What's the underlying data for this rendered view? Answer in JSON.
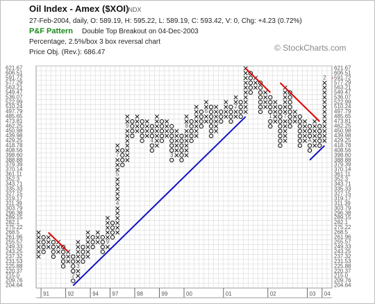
{
  "header": {
    "title": "Oil Index - Amex ($XOI)",
    "symbol_type": "INDX",
    "quote_line": "27-Feb-2004, daily, O: 589.19, H: 595.22, L: 589.19, C: 593.42, V: 0, Chg: +4.23 (0.72%)",
    "pattern_label": "P&F Pattern",
    "pattern": "Double Top Breakout on 04-Dec-2003",
    "method": "Percentage, 2.5%/box 3 box reversal chart",
    "price_objective": "Price Obj. (Rev.): 686.47",
    "watermark": "© StockCharts.com"
  },
  "chart_data": {
    "type": "pnf",
    "log_scale": true,
    "grid": true,
    "ylim": [
      204.64,
      621.67
    ],
    "yticks": [
      204.64,
      209.76,
      {
        "value": 215,
        "label": "215.0"
      },
      220.37,
      225.88,
      231.53,
      237.32,
      243.25,
      249.33,
      255.57,
      261.96,
      268.5,
      275.22,
      282.1,
      289.15,
      296.38,
      303.79,
      311.39,
      319.17,
      327.15,
      335.33,
      343.71,
      352.3,
      361.11,
      370.14,
      379.39,
      388.88,
      {
        "value": 398.6,
        "label": "398.60"
      },
      408.56,
      418.78,
      429.25,
      439.98,
      450.98,
      462.25,
      473.81,
      485.65,
      497.79,
      510.24,
      522.99,
      536.07,
      549.47,
      563.21,
      577.29,
      591.72,
      606.51,
      621.67
    ],
    "current_price_level": 591.72,
    "current_color": "#e03030",
    "x_color": "#111111",
    "o_color": "#111111",
    "month_color": "#c8783a",
    "columns": [
      {
        "box": "X",
        "low": 237.32,
        "high": 268.5
      },
      {
        "box": "O",
        "low": 243.25,
        "high": 261.96
      },
      {
        "box": "X",
        "low": 249.33,
        "high": 261.96
      },
      {
        "box": "O",
        "low": 237.32,
        "high": 255.57
      },
      {
        "box": "X",
        "low": 243.25,
        "high": 255.57
      },
      {
        "box": "O",
        "low": 225.88,
        "high": 249.33
      },
      {
        "box": "X",
        "low": 231.53,
        "high": 243.25
      },
      {
        "box": "O",
        "low": 209.76,
        "high": 237.32
      },
      {
        "box": "X",
        "low": 215,
        "high": 255.57
      },
      {
        "box": "O",
        "low": 231.53,
        "high": 249.33
      },
      {
        "box": "X",
        "low": 237.32,
        "high": 268.5
      },
      {
        "box": "O",
        "low": 249.33,
        "high": 261.96
      },
      {
        "box": "X",
        "low": 255.57,
        "high": 268.5
      },
      {
        "box": "O",
        "low": 243.25,
        "high": 261.96
      },
      {
        "box": "X",
        "low": 249.33,
        "high": 289.15
      },
      {
        "box": "O",
        "low": 261.96,
        "high": 282.1
      },
      {
        "box": "X",
        "low": 268.5,
        "high": 418.78
      },
      {
        "box": "O",
        "low": 379.39,
        "high": 408.56
      },
      {
        "box": "X",
        "low": 388.88,
        "high": 485.65
      },
      {
        "box": "O",
        "low": 439.98,
        "high": 473.81
      },
      {
        "box": "X",
        "low": 450.98,
        "high": 485.65
      },
      {
        "box": "O",
        "low": 429.25,
        "high": 473.81
      },
      {
        "box": "X",
        "low": 439.98,
        "high": 473.81
      },
      {
        "box": "O",
        "low": 408.56,
        "high": 462.25
      },
      {
        "box": "X",
        "low": 418.78,
        "high": 485.65
      },
      {
        "box": "O",
        "low": 429.25,
        "high": 473.81
      },
      {
        "box": "X",
        "low": 439.98,
        "high": 473.81
      },
      {
        "box": "O",
        "low": 388.88,
        "high": 462.25
      },
      {
        "box": "X",
        "low": 398.6,
        "high": 450.98
      },
      {
        "box": "O",
        "low": 388.88,
        "high": 439.98
      },
      {
        "box": "X",
        "low": 398.6,
        "high": 485.65
      },
      {
        "box": "O",
        "low": 429.25,
        "high": 473.81
      },
      {
        "box": "X",
        "low": 439.98,
        "high": 510.24
      },
      {
        "box": "O",
        "low": 462.25,
        "high": 497.79
      },
      {
        "box": "X",
        "low": 473.81,
        "high": 522.99
      },
      {
        "box": "O",
        "low": 439.98,
        "high": 510.24
      },
      {
        "box": "X",
        "low": 450.98,
        "high": 510.24
      },
      {
        "box": "O",
        "low": 473.81,
        "high": 497.79
      },
      {
        "box": "X",
        "low": 485.65,
        "high": 522.99
      },
      {
        "box": "O",
        "low": 473.81,
        "high": 510.24
      },
      {
        "box": "X",
        "low": 485.65,
        "high": 536.07
      },
      {
        "box": "O",
        "low": 485.65,
        "high": 522.99
      },
      {
        "box": "X",
        "low": 497.79,
        "high": 621.67
      },
      {
        "box": "O",
        "low": 549.47,
        "high": 606.51
      },
      {
        "box": "X",
        "low": 563.21,
        "high": 591.72
      },
      {
        "box": "O",
        "low": 497.79,
        "high": 577.29
      },
      {
        "box": "X",
        "low": 510.24,
        "high": 549.47
      },
      {
        "box": "O",
        "low": 462.25,
        "high": 536.07
      },
      {
        "box": "X",
        "low": 473.81,
        "high": 522.99
      },
      {
        "box": "O",
        "low": 418.78,
        "high": 510.24
      },
      {
        "box": "X",
        "low": 429.25,
        "high": 563.21
      },
      {
        "box": "O",
        "low": 462.25,
        "high": 549.47
      },
      {
        "box": "X",
        "low": 473.81,
        "high": 497.79
      },
      {
        "box": "O",
        "low": 418.78,
        "high": 485.65
      },
      {
        "box": "X",
        "low": 429.25,
        "high": 473.81
      },
      {
        "box": "O",
        "low": 408.56,
        "high": 462.25
      },
      {
        "box": "X",
        "low": 418.78,
        "high": 473.81
      },
      {
        "box": "O",
        "low": 418.78,
        "high": 462.25
      },
      {
        "box": "X",
        "low": 429.25,
        "high": 591.72
      }
    ],
    "month_marks": [
      {
        "col": 7,
        "price": 215,
        "label": "2"
      },
      {
        "col": 8,
        "price": 225.88,
        "label": "3"
      },
      {
        "col": 14,
        "price": 255.57,
        "label": "9"
      },
      {
        "col": 16,
        "price": 311.39,
        "label": "4"
      },
      {
        "col": 16,
        "price": 361.11,
        "label": "5"
      },
      {
        "col": 16,
        "price": 398.6,
        "label": "7"
      },
      {
        "col": 18,
        "price": 462.25,
        "label": "9"
      },
      {
        "col": 23,
        "price": 429.25,
        "label": "4"
      },
      {
        "col": 27,
        "price": 398.6,
        "label": "3"
      },
      {
        "col": 30,
        "price": 462.25,
        "label": "8"
      },
      {
        "col": 34,
        "price": 497.79,
        "label": "6"
      },
      {
        "col": 40,
        "price": 510.24,
        "label": "2"
      },
      {
        "col": 47,
        "price": 485.65,
        "label": "1"
      },
      {
        "col": 50,
        "price": 485.65,
        "label": "7"
      },
      {
        "col": 55,
        "price": 429.25,
        "label": "A"
      },
      {
        "col": 58,
        "price": 591.72,
        "label": "2"
      }
    ],
    "trendlines": [
      {
        "color": "#e00000",
        "from": [
          2,
          268.5
        ],
        "to": [
          6,
          243.25
        ]
      },
      {
        "color": "#1010c8",
        "from": [
          7,
          204.64
        ],
        "to": [
          42,
          485.65
        ]
      },
      {
        "color": "#e00000",
        "from": [
          42,
          621.67
        ],
        "to": [
          47,
          549.47
        ]
      },
      {
        "color": "#e00000",
        "from": [
          49,
          577.29
        ],
        "to": [
          57,
          473.81
        ]
      },
      {
        "color": "#1010c8",
        "from": [
          55,
          388.88
        ],
        "to": [
          58,
          418.78
        ]
      }
    ],
    "x_labels": [
      {
        "col": 1,
        "label": "91"
      },
      {
        "col": 6,
        "label": "92"
      },
      {
        "col": 11,
        "label": "94"
      },
      {
        "col": 15,
        "label": "97"
      },
      {
        "col": 20,
        "label": "98"
      },
      {
        "col": 25,
        "label": "99"
      },
      {
        "col": 30,
        "label": "00"
      },
      {
        "col": 38,
        "label": "01"
      },
      {
        "col": 47,
        "label": "02"
      },
      {
        "col": 55,
        "label": "03"
      },
      {
        "col": 58,
        "label": "04"
      }
    ]
  }
}
